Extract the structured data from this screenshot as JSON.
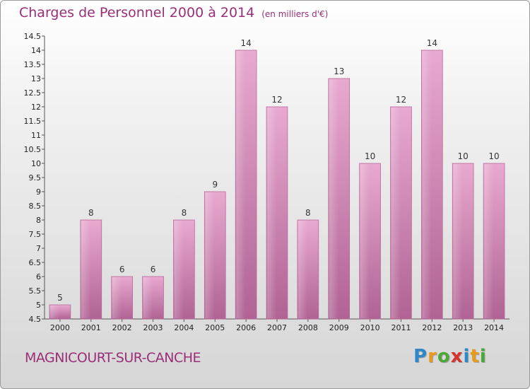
{
  "chart_data": {
    "type": "bar",
    "title": "Charges de Personnel 2000 à 2014",
    "subtitle": "(en milliers d'€)",
    "categories": [
      "2000",
      "2001",
      "2002",
      "2003",
      "2004",
      "2005",
      "2006",
      "2007",
      "2008",
      "2009",
      "2010",
      "2011",
      "2012",
      "2013",
      "2014"
    ],
    "values": [
      5,
      8,
      6,
      6,
      8,
      9,
      14,
      12,
      8,
      13,
      10,
      12,
      14,
      10,
      10
    ],
    "ylim": [
      4.5,
      14.5
    ],
    "yticks": [
      "4.5",
      "5",
      "5.5",
      "6",
      "6.5",
      "7",
      "7.5",
      "8",
      "8.5",
      "9",
      "9.5",
      "10",
      "10.5",
      "11",
      "11.5",
      "12",
      "12.5",
      "13",
      "13.5",
      "14",
      "14.5"
    ],
    "xlabel": "",
    "ylabel": "",
    "grid": false,
    "bar_color": "#d98fbd"
  },
  "footer": {
    "commune": "MAGNICOURT-SUR-CANCHE",
    "logo_letters": [
      {
        "char": "P",
        "color": "#2f86c9"
      },
      {
        "char": "r",
        "color": "#e89a1e"
      },
      {
        "char": "o",
        "color": "#4aa83a"
      },
      {
        "char": "x",
        "color": "#d8322d"
      },
      {
        "char": "i",
        "color": "#2f86c9"
      },
      {
        "char": "t",
        "color": "#e89a1e"
      },
      {
        "char": "i",
        "color": "#4aa83a"
      }
    ]
  }
}
